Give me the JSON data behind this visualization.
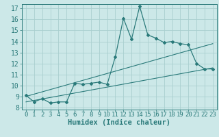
{
  "xlabel": "Humidex (Indice chaleur)",
  "bg_color": "#cce8e8",
  "line_color": "#2a7a7a",
  "grid_color": "#aacfcf",
  "xlim": [
    -0.5,
    23.5
  ],
  "ylim": [
    7.8,
    17.4
  ],
  "xticks": [
    0,
    1,
    2,
    3,
    4,
    5,
    6,
    7,
    8,
    9,
    10,
    11,
    12,
    13,
    14,
    15,
    16,
    17,
    18,
    19,
    20,
    21,
    22,
    23
  ],
  "yticks": [
    8,
    9,
    10,
    11,
    12,
    13,
    14,
    15,
    16,
    17
  ],
  "curve1_x": [
    0,
    1,
    2,
    3,
    4,
    5,
    6,
    7,
    8,
    9,
    10,
    11,
    12,
    13,
    14,
    15,
    16,
    17,
    18,
    19,
    20,
    21,
    22,
    23
  ],
  "curve1_y": [
    9.1,
    8.5,
    8.8,
    8.4,
    8.5,
    8.5,
    10.2,
    10.1,
    10.2,
    10.3,
    10.1,
    12.6,
    16.1,
    14.2,
    17.2,
    14.6,
    14.3,
    13.9,
    14.0,
    13.8,
    13.7,
    12.0,
    11.5,
    11.5
  ],
  "curve2_x": [
    0,
    23
  ],
  "curve2_y": [
    9.0,
    13.8
  ],
  "curve3_x": [
    0,
    23
  ],
  "curve3_y": [
    8.5,
    11.6
  ],
  "xlabel_fontsize": 7.5,
  "tick_fontsize": 6.5
}
